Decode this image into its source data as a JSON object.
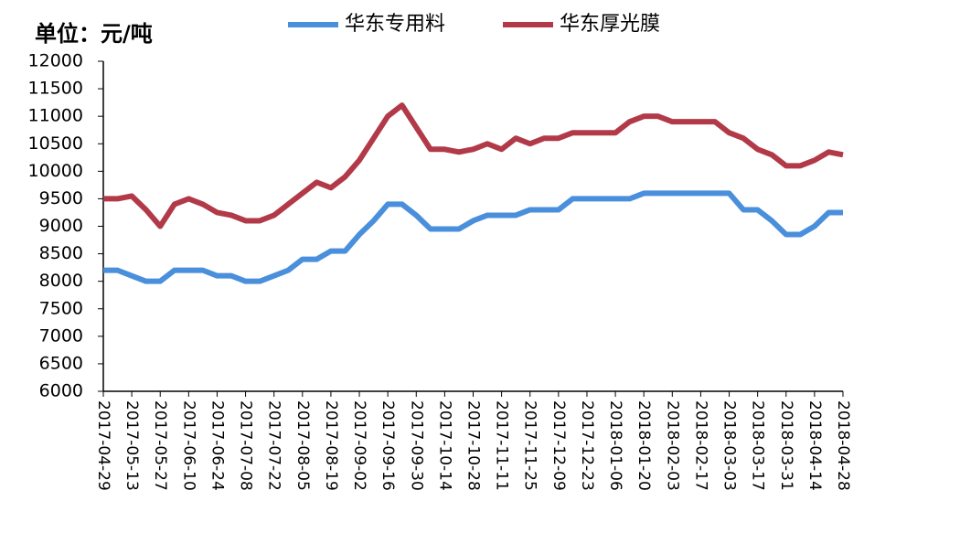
{
  "chart_data": {
    "type": "line",
    "unit_label": "单位：元/吨",
    "x": [
      "2017-04-29",
      "2017-05-06",
      "2017-05-13",
      "2017-05-20",
      "2017-05-27",
      "2017-06-03",
      "2017-06-10",
      "2017-06-17",
      "2017-06-24",
      "2017-07-01",
      "2017-07-08",
      "2017-07-15",
      "2017-07-22",
      "2017-07-29",
      "2017-08-05",
      "2017-08-12",
      "2017-08-19",
      "2017-08-26",
      "2017-09-02",
      "2017-09-09",
      "2017-09-16",
      "2017-09-23",
      "2017-09-30",
      "2017-10-07",
      "2017-10-14",
      "2017-10-21",
      "2017-10-28",
      "2017-11-04",
      "2017-11-11",
      "2017-11-18",
      "2017-11-25",
      "2017-12-02",
      "2017-12-09",
      "2017-12-16",
      "2017-12-23",
      "2017-12-30",
      "2018-01-06",
      "2018-01-13",
      "2018-01-20",
      "2018-01-27",
      "2018-02-03",
      "2018-02-10",
      "2018-02-17",
      "2018-02-24",
      "2018-03-03",
      "2018-03-10",
      "2018-03-17",
      "2018-03-24",
      "2018-03-31",
      "2018-04-07",
      "2018-04-14",
      "2018-04-21",
      "2018-04-28"
    ],
    "series": [
      {
        "name": "华东专用料",
        "color": "#4a8fdc",
        "values": [
          8200,
          8200,
          8100,
          8000,
          8000,
          8200,
          8200,
          8200,
          8100,
          8100,
          8000,
          8000,
          8100,
          8200,
          8400,
          8400,
          8550,
          8550,
          8850,
          9100,
          9400,
          9400,
          9200,
          8950,
          8950,
          8950,
          9100,
          9200,
          9200,
          9200,
          9300,
          9300,
          9300,
          9500,
          9500,
          9500,
          9500,
          9500,
          9600,
          9600,
          9600,
          9600,
          9600,
          9600,
          9600,
          9300,
          9300,
          9100,
          8850,
          8850,
          9000,
          9250,
          9250
        ]
      },
      {
        "name": "华东厚光膜",
        "color": "#b23a48",
        "values": [
          9500,
          9500,
          9550,
          9300,
          9000,
          9400,
          9500,
          9400,
          9250,
          9200,
          9100,
          9100,
          9200,
          9400,
          9600,
          9800,
          9700,
          9900,
          10200,
          10600,
          11000,
          11200,
          10800,
          10400,
          10400,
          10350,
          10400,
          10500,
          10400,
          10600,
          10500,
          10600,
          10600,
          10700,
          10700,
          10700,
          10700,
          10900,
          11000,
          11000,
          10900,
          10900,
          10900,
          10900,
          10700,
          10600,
          10400,
          10300,
          10100,
          10100,
          10200,
          10350,
          10300
        ]
      }
    ],
    "xlim": [
      "2017-04-29",
      "2018-04-28"
    ],
    "xticks": [
      "2017-04-29",
      "2017-05-13",
      "2017-05-27",
      "2017-06-10",
      "2017-06-24",
      "2017-07-08",
      "2017-07-22",
      "2017-08-05",
      "2017-08-19",
      "2017-09-02",
      "2017-09-16",
      "2017-09-30",
      "2017-10-14",
      "2017-10-28",
      "2017-11-11",
      "2017-11-25",
      "2017-12-09",
      "2017-12-23",
      "2018-01-06",
      "2018-01-20",
      "2018-02-03",
      "2018-02-17",
      "2018-03-03",
      "2018-03-17",
      "2018-03-31",
      "2018-04-14",
      "2018-04-28"
    ],
    "ylim": [
      6000,
      12000
    ],
    "yticks": [
      6000,
      6500,
      7000,
      7500,
      8000,
      8500,
      9000,
      9500,
      10000,
      10500,
      11000,
      11500,
      12000
    ],
    "grid": false
  }
}
